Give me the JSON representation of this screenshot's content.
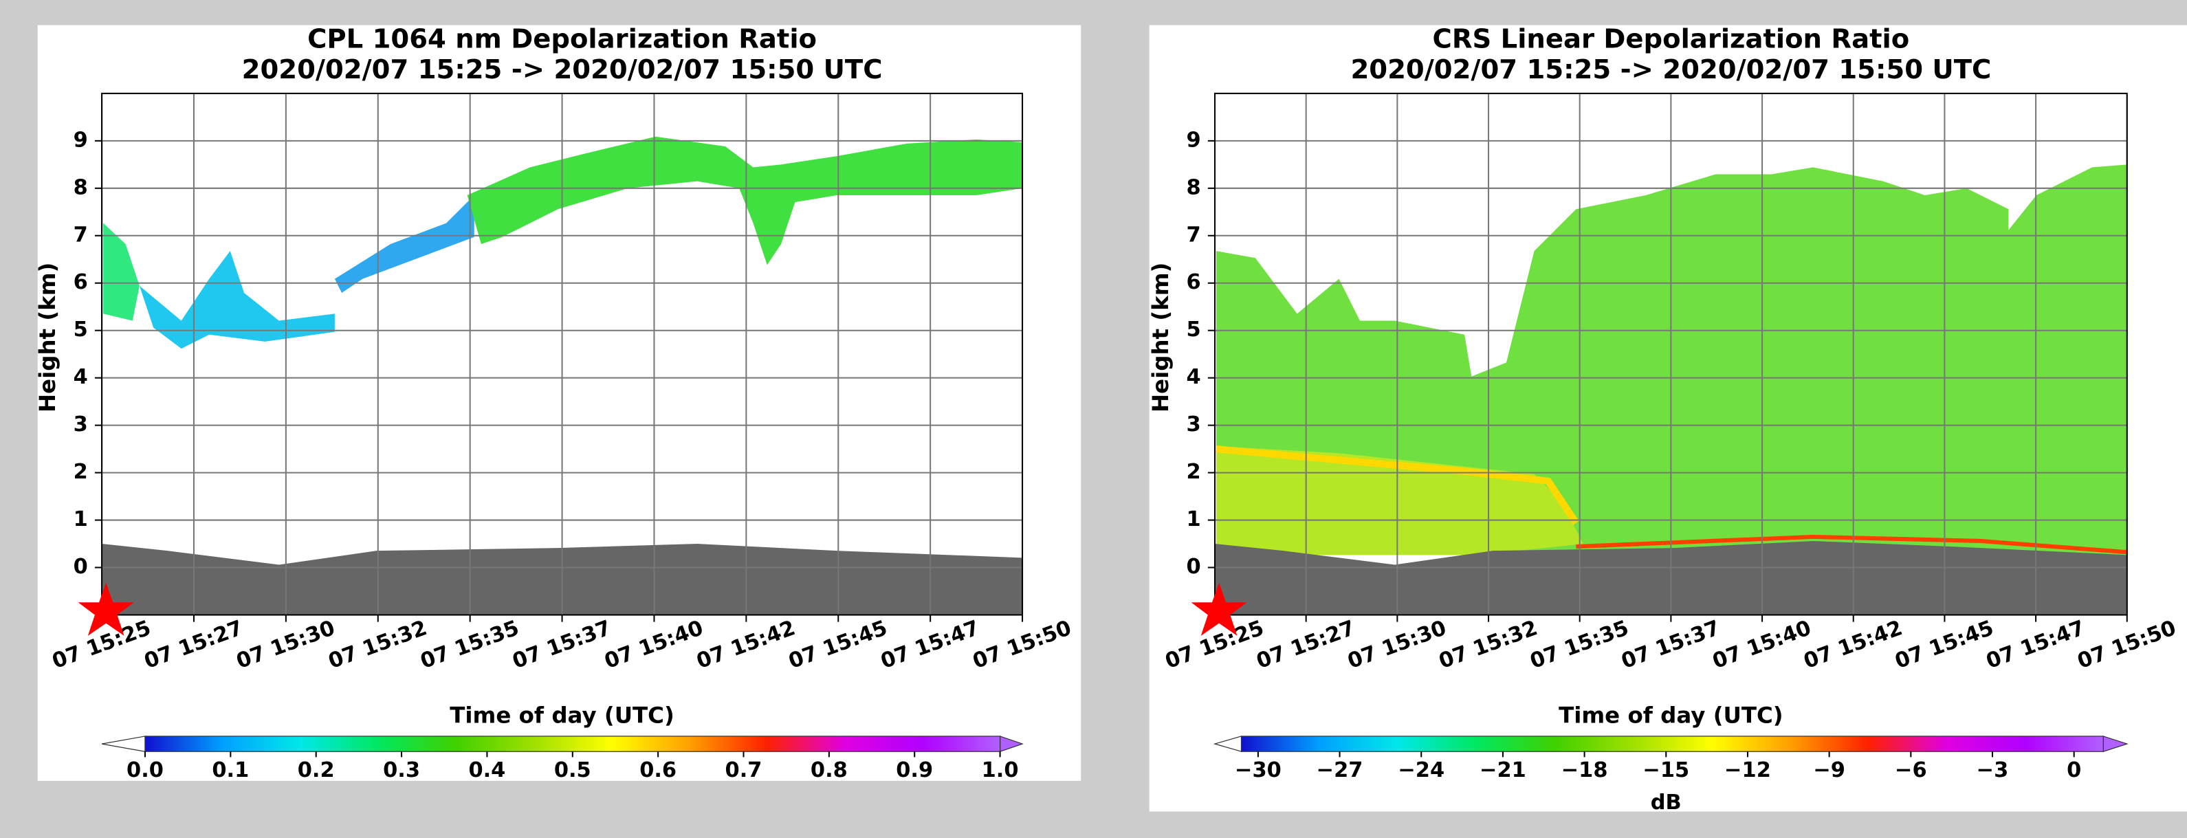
{
  "chart_data": [
    {
      "type": "curtain",
      "title": "CPL 1064 nm  Depolarization Ratio",
      "subtitle": "2020/02/07 15:25 -> 2020/02/07 15:50 UTC",
      "xlabel": "Time of day (UTC)",
      "ylabel": "Height (km)",
      "categories": [
        "07 15:25",
        "07 15:27",
        "07 15:30",
        "07 15:32",
        "07 15:35",
        "07 15:37",
        "07 15:40",
        "07 15:42",
        "07 15:45",
        "07 15:47",
        "07 15:50"
      ],
      "ylim": [
        -1,
        10
      ],
      "yticks": [
        0,
        1,
        2,
        3,
        4,
        5,
        6,
        7,
        8,
        9
      ],
      "grid": true,
      "colorbar": {
        "clim": [
          0,
          1
        ],
        "ticks": [
          {
            "value": 0,
            "label": "0.0"
          },
          0.1,
          0.2,
          0.3,
          0.4,
          0.5,
          0.6,
          0.7,
          0.8,
          0.9,
          {
            "value": 1,
            "label": "1.0"
          }
        ],
        "colormap": [
          "#1010d0",
          "#00a0ff",
          "#00e8e8",
          "#00e860",
          "#40d000",
          "#a0e000",
          "#ffff00",
          "#ffa000",
          "#ff2000",
          "#e000e0",
          "#b000ff",
          "#b060ff"
        ]
      }
    },
    {
      "type": "curtain",
      "title": "CRS Linear Depolarization Ratio",
      "subtitle": "2020/02/07 15:25 -> 2020/02/07 15:50 UTC",
      "xlabel": "Time of day (UTC)",
      "ylabel": "Height (km)",
      "categories": [
        "07 15:25",
        "07 15:27",
        "07 15:30",
        "07 15:32",
        "07 15:35",
        "07 15:37",
        "07 15:40",
        "07 15:42",
        "07 15:45",
        "07 15:47",
        "07 15:50"
      ],
      "ylim": [
        -1,
        10
      ],
      "yticks": [
        0,
        1,
        2,
        3,
        4,
        5,
        6,
        7,
        8,
        9
      ],
      "grid": true,
      "colorbar": {
        "clim": [
          -30,
          0
        ],
        "label": "dB",
        "ticks": [
          {
            "value": -30,
            "label": "−30"
          },
          {
            "value": -27,
            "label": "−27"
          },
          {
            "value": -24,
            "label": "−24"
          },
          {
            "value": -21,
            "label": "−21"
          },
          {
            "value": -18,
            "label": "−18"
          },
          {
            "value": -15,
            "label": "−15"
          },
          {
            "value": -12,
            "label": "−12"
          },
          {
            "value": -9,
            "label": "−9"
          },
          {
            "value": -6,
            "label": "−6"
          },
          {
            "value": -3,
            "label": "−3"
          },
          0
        ],
        "colormap": [
          "#1010d0",
          "#00a0ff",
          "#00e8e8",
          "#00e860",
          "#40d000",
          "#a0e000",
          "#ffff00",
          "#ffa000",
          "#ff2000",
          "#e000e0",
          "#b000ff",
          "#b060ff"
        ]
      }
    }
  ]
}
